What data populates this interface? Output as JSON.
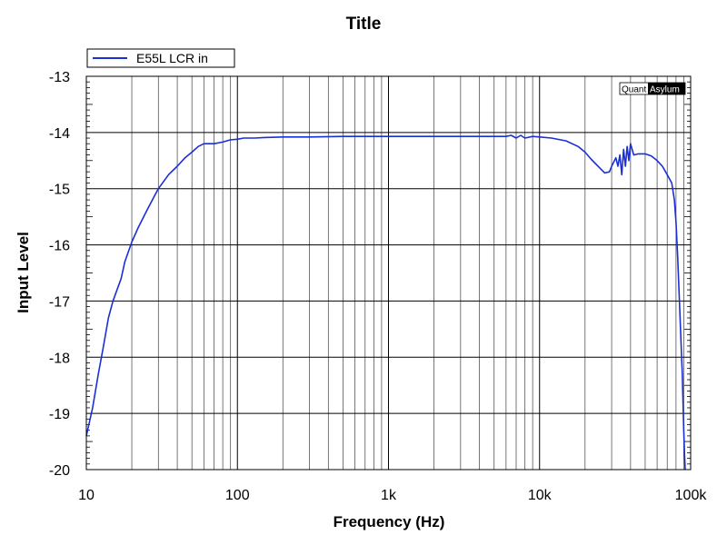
{
  "chart_data": {
    "type": "line",
    "title": "Title",
    "xlabel": "Frequency (Hz)",
    "ylabel": "Input Level",
    "xscale": "log",
    "xlim": [
      10,
      100000
    ],
    "ylim": [
      -20,
      -13
    ],
    "xticks": [
      10,
      100,
      1000,
      10000,
      100000
    ],
    "xtick_labels": [
      "10",
      "100",
      "1k",
      "10k",
      "100k"
    ],
    "yticks": [
      -13,
      -14,
      -15,
      -16,
      -17,
      -18,
      -19,
      -20
    ],
    "ytick_labels": [
      "-13",
      "-14",
      "-15",
      "-16",
      "-17",
      "-18",
      "-19",
      "-20"
    ],
    "grid": true,
    "legend_position": "top-left",
    "watermark": {
      "left": "Quant",
      "right": "Asylum"
    },
    "series": [
      {
        "name": "E55L LCR in",
        "color": "#1a2fd6",
        "x": [
          10,
          11,
          12,
          13,
          14,
          15,
          17,
          18,
          20,
          22,
          25,
          28,
          30,
          35,
          40,
          45,
          50,
          55,
          60,
          70,
          80,
          90,
          100,
          110,
          120,
          130,
          150,
          200,
          300,
          500,
          1000,
          2000,
          3000,
          5000,
          6000,
          6500,
          7000,
          7500,
          8000,
          9000,
          10000,
          12000,
          15000,
          18000,
          20000,
          22000,
          25000,
          27000,
          29000,
          30000,
          32000,
          33000,
          34000,
          35000,
          36000,
          37000,
          38000,
          39000,
          40000,
          42000,
          45000,
          50000,
          55000,
          60000,
          65000,
          70000,
          75000,
          78000,
          80000,
          82000,
          84000,
          86000,
          88000,
          89000,
          90000,
          91000,
          92000
        ],
        "y": [
          -19.4,
          -18.9,
          -18.3,
          -17.8,
          -17.3,
          -17.0,
          -16.6,
          -16.3,
          -15.95,
          -15.7,
          -15.4,
          -15.15,
          -15.0,
          -14.75,
          -14.6,
          -14.45,
          -14.35,
          -14.25,
          -14.2,
          -14.2,
          -14.17,
          -14.13,
          -14.12,
          -14.1,
          -14.1,
          -14.1,
          -14.09,
          -14.08,
          -14.08,
          -14.07,
          -14.07,
          -14.07,
          -14.07,
          -14.07,
          -14.07,
          -14.05,
          -14.1,
          -14.05,
          -14.1,
          -14.07,
          -14.08,
          -14.1,
          -14.15,
          -14.25,
          -14.35,
          -14.48,
          -14.63,
          -14.72,
          -14.7,
          -14.6,
          -14.45,
          -14.6,
          -14.4,
          -14.75,
          -14.3,
          -14.6,
          -14.25,
          -14.5,
          -14.2,
          -14.4,
          -14.38,
          -14.38,
          -14.42,
          -14.5,
          -14.6,
          -14.75,
          -14.9,
          -15.2,
          -15.6,
          -16.2,
          -16.9,
          -17.6,
          -18.3,
          -18.8,
          -19.3,
          -19.7,
          -20.0
        ]
      }
    ]
  }
}
